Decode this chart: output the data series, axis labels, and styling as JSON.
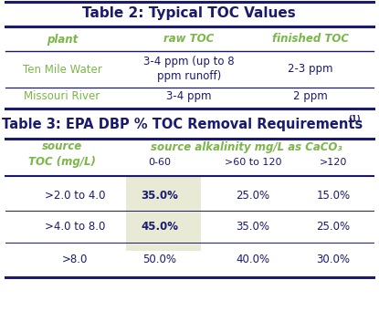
{
  "table1_title": "Table 2: Typical TOC Values",
  "table1_headers": [
    "plant",
    "raw TOC",
    "finished TOC"
  ],
  "table1_rows": [
    [
      "Ten Mile Water",
      "3-4 ppm (up to 8\nppm runoff)",
      "2-3 ppm"
    ],
    [
      "Missouri River",
      "3-4 ppm",
      "2 ppm"
    ]
  ],
  "table2_title": "Table 3: EPA DBP % TOC Removal Requirements",
  "table2_superscript": "(1)",
  "table2_header_left": "source\nTOC (mg/L)",
  "table2_header_center": "source alkalinity mg/L as CaCO₃",
  "table2_subheaders": [
    "0-60",
    ">60 to 120",
    ">120"
  ],
  "table2_rows": [
    [
      ">2.0 to 4.0",
      "35.0%",
      "25.0%",
      "15.0%"
    ],
    [
      ">4.0 to 8.0",
      "45.0%",
      "35.0%",
      "25.0%"
    ],
    [
      ">8.0",
      "50.0%",
      "40.0%",
      "30.0%"
    ]
  ],
  "highlight_color": "#e8ead6",
  "title_color": "#1a1a6e",
  "header_green": "#7ab648",
  "cell_navy": "#1a1a6e",
  "bg_color": "#ffffff",
  "border_color": "#1a1a6e"
}
